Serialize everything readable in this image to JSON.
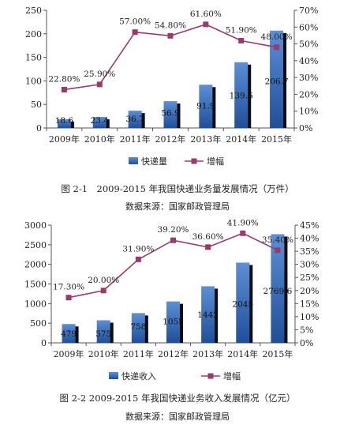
{
  "chart_data": [
    {
      "type": "bar",
      "categories": [
        "2009年",
        "2010年",
        "2011年",
        "2012年",
        "2013年",
        "2014年",
        "2015年"
      ],
      "series": [
        {
          "name": "快递量",
          "type": "bar",
          "axis": "left",
          "values": [
            18.6,
            23.4,
            36.7,
            56.9,
            91.9,
            139.6,
            206.7
          ],
          "labels": [
            "18.6",
            "23.4",
            "36.7",
            "56.9",
            "91.9",
            "139.6",
            "206.7"
          ]
        },
        {
          "name": "增幅",
          "type": "line",
          "axis": "right",
          "values": [
            22.8,
            25.9,
            57.0,
            54.8,
            61.6,
            51.9,
            48.0
          ],
          "labels": [
            "22.80%",
            "25.90%",
            "57.00%",
            "54.80%",
            "61.60%",
            "51.90%",
            "48.00%"
          ]
        }
      ],
      "ylim_left": [
        0,
        250
      ],
      "yticks_left": [
        "0",
        "50",
        "100",
        "150",
        "200",
        "250"
      ],
      "ylim_right": [
        0,
        70
      ],
      "yticks_right": [
        "0%",
        "10%",
        "20%",
        "30%",
        "40%",
        "50%",
        "60%",
        "70%"
      ],
      "legend_position": "bottom",
      "title": "图 2-1　2009-2015 年我国快递业务量发展情况（万件）",
      "source": "数据来源：国家邮政管理局"
    },
    {
      "type": "bar",
      "categories": [
        "2009年",
        "2010年",
        "2011年",
        "2012年",
        "2013年",
        "2014年",
        "2015年"
      ],
      "series": [
        {
          "name": "快递收入",
          "type": "bar",
          "axis": "left",
          "values": [
            479,
            575,
            758,
            1055,
            1442,
            2045,
            2769.6
          ],
          "labels": [
            "479",
            "575",
            "758",
            "1055",
            "1442",
            "2045",
            "2769.6"
          ]
        },
        {
          "name": "增幅",
          "type": "line",
          "axis": "right",
          "values": [
            17.3,
            20.0,
            31.9,
            39.2,
            36.6,
            41.9,
            35.4
          ],
          "labels": [
            "17.30%",
            "20.00%",
            "31.90%",
            "39.20%",
            "36.60%",
            "41.90%",
            "35.40%"
          ]
        }
      ],
      "ylim_left": [
        0,
        3000
      ],
      "yticks_left": [
        "0",
        "500",
        "1000",
        "1500",
        "2000",
        "2500",
        "3000"
      ],
      "ylim_right": [
        0,
        45
      ],
      "yticks_right": [
        "0%",
        "5%",
        "10%",
        "15%",
        "20%",
        "25%",
        "30%",
        "35%",
        "40%",
        "45%"
      ],
      "legend_position": "bottom",
      "title": "图 2-2 2009-2015 年我国快递业务收入发展情况（亿元）",
      "source": "数据来源：国家邮政管理局"
    }
  ],
  "colors": {
    "bar_top": "#5b8fd6",
    "bar_bottom": "#1f4f99",
    "bar_shadow": "#0d0d0d",
    "line": "#9a3a6b",
    "axis": "#555555"
  }
}
